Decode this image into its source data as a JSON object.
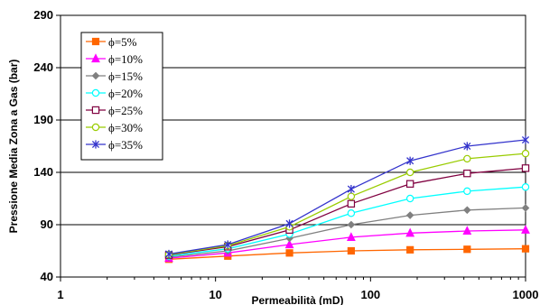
{
  "chart_data": {
    "type": "line",
    "title": "",
    "xlabel": "Permeabilità (mD)",
    "ylabel": "Pressione Media Zona a Gas (bar)",
    "xscale": "log",
    "xlim": [
      1,
      1000
    ],
    "ylim": [
      40,
      290
    ],
    "x_ticks": [
      "1",
      "10",
      "100",
      "1000"
    ],
    "y_ticks": [
      "40",
      "90",
      "140",
      "190",
      "240",
      "290"
    ],
    "grid": "horizontal",
    "legend_placement": "top-left",
    "x": [
      5,
      12,
      30,
      75,
      180,
      420,
      1000
    ],
    "series": [
      {
        "name": "ϕ=5%",
        "color": "#FF6600",
        "marker": "square",
        "values": [
          57,
          60,
          63,
          65,
          66,
          66.5,
          67
        ]
      },
      {
        "name": "ϕ=10%",
        "color": "#FF00FF",
        "marker": "triangle",
        "values": [
          58,
          63,
          71,
          78,
          82,
          84,
          85
        ]
      },
      {
        "name": "ϕ=15%",
        "color": "#808080",
        "marker": "diamond",
        "values": [
          59,
          65,
          77,
          90,
          99,
          104,
          106
        ]
      },
      {
        "name": "ϕ=20%",
        "color": "#00FFFF",
        "marker": "circle-open",
        "values": [
          60,
          67,
          81,
          101,
          115,
          122,
          126
        ]
      },
      {
        "name": "ϕ=25%",
        "color": "#800040",
        "marker": "square-open",
        "values": [
          61,
          69,
          85,
          110,
          129,
          139,
          144
        ]
      },
      {
        "name": "ϕ=30%",
        "color": "#99CC00",
        "marker": "circle-open",
        "values": [
          61.5,
          70,
          88,
          117,
          140,
          153,
          158
        ]
      },
      {
        "name": "ϕ=35%",
        "color": "#3333CC",
        "marker": "star",
        "values": [
          62,
          71,
          91,
          124,
          151,
          165,
          171
        ]
      }
    ]
  }
}
